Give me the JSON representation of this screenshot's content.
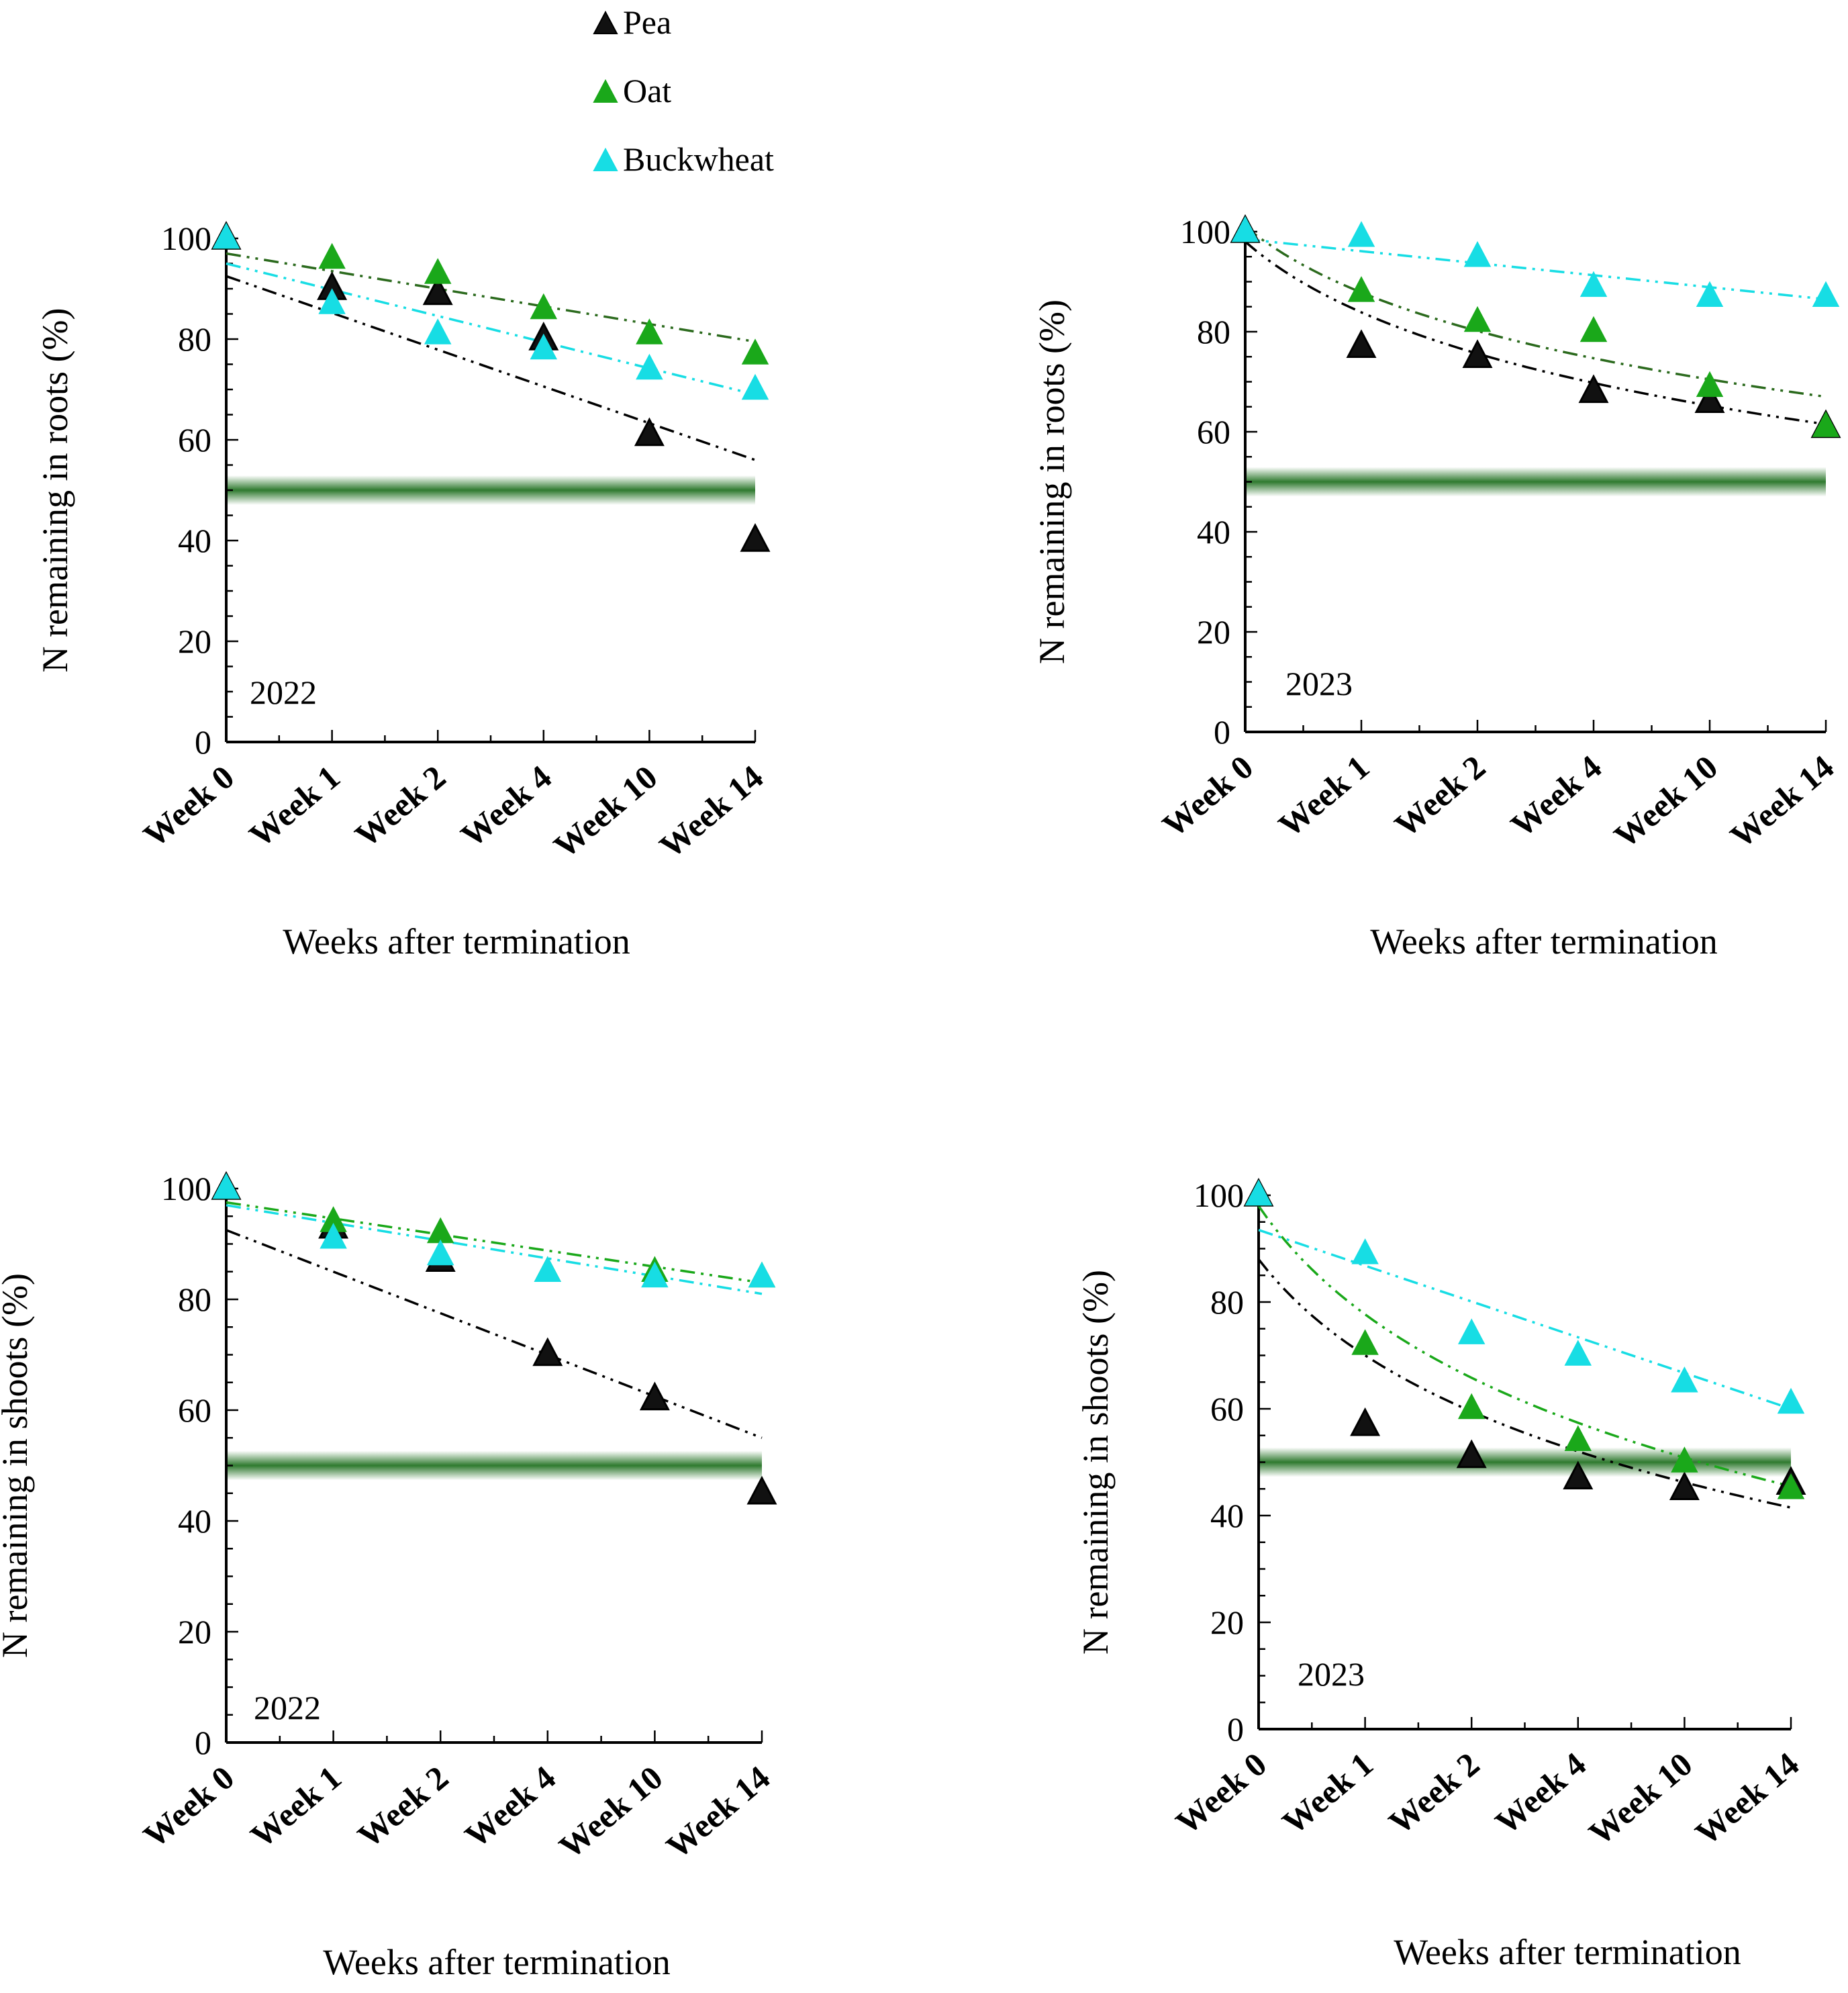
{
  "legend": {
    "items": [
      {
        "label": "Pea",
        "color": "#111111",
        "edge": "#000000"
      },
      {
        "label": "Oat",
        "color": "#1aa81a",
        "edge": "#1aa81a"
      },
      {
        "label": "Buckwheat",
        "color": "#17dde4",
        "edge": "#17dde4"
      }
    ]
  },
  "colors": {
    "pea_trend": "#000000",
    "oat_trend_2022_roots": "#2b6a1d",
    "oat_trend_2023_roots": "#2b6a1d",
    "oat_trend_shoots": "#1aa81a",
    "buckwheat_trend": "#17dde4",
    "threshold_band": "#2f7a2f"
  },
  "chart_data": [
    {
      "id": "roots-2022",
      "type": "scatter",
      "year_label": "2022",
      "xlabel": "Weeks after termination",
      "ylabel": "N remaining in roots (%)",
      "categories": [
        "Week 0",
        "Week 1",
        "Week 2",
        "Week 4",
        "Week 10",
        "Week 14"
      ],
      "ylim": [
        0,
        100
      ],
      "yticks": [
        "0",
        "20",
        "40",
        "60",
        "80",
        "100"
      ],
      "threshold": 50,
      "series": [
        {
          "name": "Pea",
          "values": [
            100,
            90,
            89,
            80,
            61,
            40
          ],
          "trend": "linear",
          "trend_start": 92.5,
          "trend_end": 56
        },
        {
          "name": "Oat",
          "values": [
            100,
            96,
            93,
            86,
            81,
            77
          ],
          "trend": "linear",
          "trend_start": 97,
          "trend_end": 79.5
        },
        {
          "name": "Buckwheat",
          "values": [
            100,
            87,
            81,
            78,
            74,
            70
          ],
          "trend": "linear",
          "trend_start": 95,
          "trend_end": 69
        }
      ]
    },
    {
      "id": "roots-2023",
      "type": "scatter",
      "year_label": "2023",
      "xlabel": "Weeks after termination",
      "ylabel": "N remaining in roots (%)",
      "categories": [
        "Week 0",
        "Week 1",
        "Week 2",
        "Week 4",
        "Week 10",
        "Week 14"
      ],
      "ylim": [
        0,
        100
      ],
      "yticks": [
        "0",
        "20",
        "40",
        "60",
        "80",
        "100"
      ],
      "threshold": 50,
      "series": [
        {
          "name": "Pea",
          "values": [
            100,
            77,
            75,
            68,
            66,
            61
          ],
          "trend": "log",
          "trend_start": 98,
          "trend_end": 61.5
        },
        {
          "name": "Oat",
          "values": [
            100,
            88,
            82,
            80,
            69,
            61
          ],
          "trend": "log",
          "trend_start": 101,
          "trend_end": 67
        },
        {
          "name": "Buckwheat",
          "values": [
            100,
            99,
            95,
            89,
            87,
            87
          ],
          "trend": "linear",
          "trend_start": 98.5,
          "trend_end": 86.5
        }
      ]
    },
    {
      "id": "shoots-2022",
      "type": "scatter",
      "year_label": "2022",
      "xlabel": "Weeks after termination",
      "ylabel": "N remaining in shoots (%)",
      "categories": [
        "Week 0",
        "Week 1",
        "Week 2",
        "Week 4",
        "Week 10",
        "Week 14"
      ],
      "ylim": [
        0,
        100
      ],
      "yticks": [
        "0",
        "20",
        "40",
        "60",
        "80",
        "100"
      ],
      "threshold": 50,
      "series": [
        {
          "name": "Pea",
          "values": [
            100,
            93,
            87,
            70,
            62,
            45
          ],
          "trend": "linear",
          "trend_start": 92.5,
          "trend_end": 55
        },
        {
          "name": "Oat",
          "values": [
            100,
            94,
            92,
            85,
            85,
            84
          ],
          "trend": "linear",
          "trend_start": 97.5,
          "trend_end": 83
        },
        {
          "name": "Buckwheat",
          "values": [
            100,
            91,
            88,
            85,
            84,
            84
          ],
          "trend": "linear",
          "trend_start": 97,
          "trend_end": 81
        }
      ]
    },
    {
      "id": "shoots-2023",
      "type": "scatter",
      "year_label": "2023",
      "xlabel": "Weeks after termination",
      "ylabel": "N remaining in shoots (%)",
      "categories": [
        "Week 0",
        "Week 1",
        "Week 2",
        "Week 4",
        "Week 10",
        "Week 14"
      ],
      "ylim": [
        0,
        100
      ],
      "yticks": [
        "0",
        "20",
        "40",
        "60",
        "80",
        "100"
      ],
      "threshold": 50,
      "series": [
        {
          "name": "Pea",
          "values": [
            100,
            57,
            51,
            47,
            45,
            46
          ],
          "trend": "log",
          "trend_start": 88,
          "trend_end": 41.5
        },
        {
          "name": "Oat",
          "values": [
            100,
            72,
            60,
            54,
            50,
            45
          ],
          "trend": "log",
          "trend_start": 98,
          "trend_end": 45.5
        },
        {
          "name": "Buckwheat",
          "values": [
            100,
            89,
            74,
            70,
            65,
            61
          ],
          "trend": "linear",
          "trend_start": 93.5,
          "trend_end": 60
        }
      ]
    }
  ]
}
